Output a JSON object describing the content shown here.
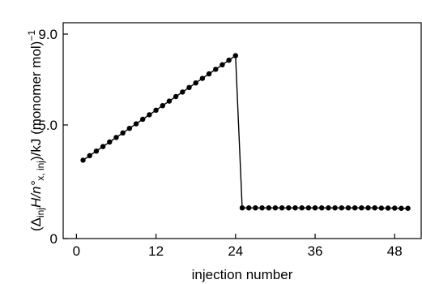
{
  "chart_data": {
    "type": "line",
    "title": "",
    "xlabel": "injection number",
    "ylabel_parts": {
      "open": "(Δ",
      "sub1": "inj",
      "mid": "H/n°",
      "sub2": "x, inj",
      "tail": ")/kJ (monomer mol)",
      "sup": "−1"
    },
    "xlim": [
      -2,
      52
    ],
    "ylim": [
      0,
      9.5
    ],
    "x_ticks": [
      0,
      12,
      24,
      36,
      48
    ],
    "x_tick_labels": [
      "0",
      "12",
      "24",
      "36",
      "48"
    ],
    "y_ticks": [
      0,
      5.0,
      9.0
    ],
    "y_tick_labels": [
      "0",
      "5.0",
      "9.0"
    ],
    "grid": false,
    "legend": "none",
    "colors": {
      "line": "#000000",
      "marker": "#000000",
      "axis": "#000000"
    },
    "series": [
      {
        "x": [
          1,
          2,
          3,
          4,
          5,
          6,
          7,
          8,
          9,
          10,
          11,
          12,
          13,
          14,
          15,
          16,
          17,
          18,
          19,
          20,
          21,
          22,
          23,
          24,
          25,
          26,
          27,
          28,
          29,
          30,
          31,
          32,
          33,
          34,
          35,
          36,
          37,
          38,
          39,
          40,
          41,
          42,
          43,
          44,
          45,
          46,
          47,
          48,
          49,
          50
        ],
        "values": [
          3.45,
          3.65,
          3.85,
          4.05,
          4.25,
          4.45,
          4.65,
          4.85,
          5.05,
          5.25,
          5.45,
          5.65,
          5.85,
          6.05,
          6.25,
          6.45,
          6.65,
          6.85,
          7.05,
          7.25,
          7.45,
          7.65,
          7.85,
          8.05,
          1.35,
          1.35,
          1.35,
          1.35,
          1.35,
          1.35,
          1.35,
          1.35,
          1.35,
          1.35,
          1.35,
          1.35,
          1.35,
          1.35,
          1.35,
          1.35,
          1.35,
          1.35,
          1.35,
          1.35,
          1.35,
          1.34,
          1.34,
          1.34,
          1.33,
          1.33
        ]
      }
    ]
  }
}
